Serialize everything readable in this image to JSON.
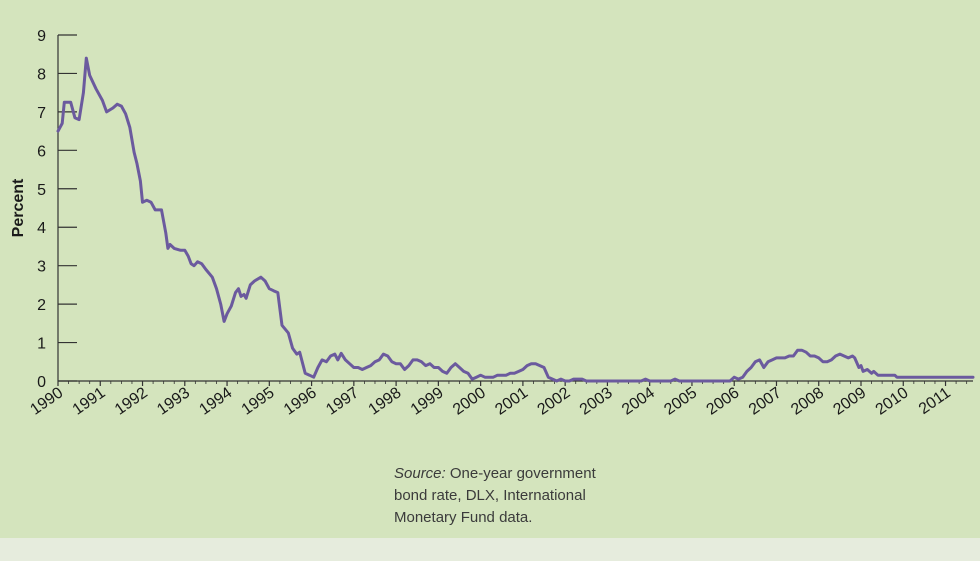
{
  "chart_data": {
    "type": "line",
    "title": "",
    "ylabel": "Percent",
    "xlabel": "",
    "ylim": [
      0,
      9
    ],
    "xlim": [
      1990,
      2011.65
    ],
    "y_ticks": [
      0,
      1,
      2,
      3,
      4,
      5,
      6,
      7,
      8,
      9
    ],
    "x_ticks": [
      1990,
      1991,
      1992,
      1993,
      1994,
      1995,
      1996,
      1997,
      1998,
      1999,
      2000,
      2001,
      2002,
      2003,
      2004,
      2005,
      2006,
      2007,
      2008,
      2009,
      2010,
      2011
    ],
    "x_tick_labels": [
      "1990",
      "1991",
      "1992",
      "1993",
      "1994",
      "1995",
      "1996",
      "1997",
      "1998",
      "1999",
      "2000",
      "2001",
      "2002",
      "2003",
      "2004",
      "2005",
      "2006",
      "2007",
      "2008",
      "2009",
      "2010",
      "2011"
    ],
    "grid": false,
    "line_color": "#6b5a9e",
    "series": [
      {
        "points": [
          [
            1990.0,
            6.5
          ],
          [
            1990.1,
            6.7
          ],
          [
            1990.15,
            7.25
          ],
          [
            1990.3,
            7.25
          ],
          [
            1990.4,
            6.85
          ],
          [
            1990.5,
            6.8
          ],
          [
            1990.6,
            7.5
          ],
          [
            1990.67,
            8.4
          ],
          [
            1990.75,
            7.95
          ],
          [
            1990.9,
            7.6
          ],
          [
            1991.05,
            7.3
          ],
          [
            1991.15,
            7.0
          ],
          [
            1991.3,
            7.1
          ],
          [
            1991.4,
            7.2
          ],
          [
            1991.5,
            7.15
          ],
          [
            1991.6,
            6.95
          ],
          [
            1991.7,
            6.6
          ],
          [
            1991.8,
            5.95
          ],
          [
            1991.87,
            5.65
          ],
          [
            1991.95,
            5.2
          ],
          [
            1992.0,
            4.65
          ],
          [
            1992.1,
            4.7
          ],
          [
            1992.2,
            4.65
          ],
          [
            1992.3,
            4.45
          ],
          [
            1992.45,
            4.45
          ],
          [
            1992.55,
            3.85
          ],
          [
            1992.6,
            3.45
          ],
          [
            1992.65,
            3.55
          ],
          [
            1992.75,
            3.45
          ],
          [
            1992.9,
            3.4
          ],
          [
            1993.0,
            3.4
          ],
          [
            1993.08,
            3.25
          ],
          [
            1993.15,
            3.05
          ],
          [
            1993.22,
            3.0
          ],
          [
            1993.3,
            3.1
          ],
          [
            1993.4,
            3.05
          ],
          [
            1993.5,
            2.9
          ],
          [
            1993.65,
            2.7
          ],
          [
            1993.75,
            2.4
          ],
          [
            1993.85,
            2.0
          ],
          [
            1993.93,
            1.55
          ],
          [
            1994.0,
            1.75
          ],
          [
            1994.1,
            1.95
          ],
          [
            1994.2,
            2.3
          ],
          [
            1994.27,
            2.4
          ],
          [
            1994.33,
            2.2
          ],
          [
            1994.4,
            2.25
          ],
          [
            1994.45,
            2.15
          ],
          [
            1994.55,
            2.5
          ],
          [
            1994.65,
            2.6
          ],
          [
            1994.8,
            2.7
          ],
          [
            1994.9,
            2.6
          ],
          [
            1995.0,
            2.4
          ],
          [
            1995.1,
            2.35
          ],
          [
            1995.2,
            2.3
          ],
          [
            1995.3,
            1.45
          ],
          [
            1995.45,
            1.25
          ],
          [
            1995.55,
            0.85
          ],
          [
            1995.65,
            0.7
          ],
          [
            1995.72,
            0.75
          ],
          [
            1995.85,
            0.2
          ],
          [
            1995.95,
            0.15
          ],
          [
            1996.05,
            0.1
          ],
          [
            1996.15,
            0.35
          ],
          [
            1996.25,
            0.55
          ],
          [
            1996.35,
            0.5
          ],
          [
            1996.45,
            0.65
          ],
          [
            1996.55,
            0.7
          ],
          [
            1996.62,
            0.55
          ],
          [
            1996.7,
            0.72
          ],
          [
            1996.8,
            0.55
          ],
          [
            1996.9,
            0.45
          ],
          [
            1997.0,
            0.35
          ],
          [
            1997.1,
            0.35
          ],
          [
            1997.2,
            0.3
          ],
          [
            1997.3,
            0.35
          ],
          [
            1997.4,
            0.4
          ],
          [
            1997.5,
            0.5
          ],
          [
            1997.6,
            0.55
          ],
          [
            1997.7,
            0.7
          ],
          [
            1997.8,
            0.65
          ],
          [
            1997.9,
            0.5
          ],
          [
            1998.0,
            0.45
          ],
          [
            1998.1,
            0.45
          ],
          [
            1998.2,
            0.3
          ],
          [
            1998.3,
            0.4
          ],
          [
            1998.4,
            0.55
          ],
          [
            1998.5,
            0.55
          ],
          [
            1998.6,
            0.5
          ],
          [
            1998.7,
            0.4
          ],
          [
            1998.8,
            0.45
          ],
          [
            1998.9,
            0.35
          ],
          [
            1999.0,
            0.35
          ],
          [
            1999.1,
            0.25
          ],
          [
            1999.2,
            0.2
          ],
          [
            1999.3,
            0.35
          ],
          [
            1999.4,
            0.45
          ],
          [
            1999.5,
            0.35
          ],
          [
            1999.6,
            0.25
          ],
          [
            1999.7,
            0.2
          ],
          [
            1999.8,
            0.05
          ],
          [
            1999.9,
            0.1
          ],
          [
            2000.0,
            0.15
          ],
          [
            2000.1,
            0.1
          ],
          [
            2000.2,
            0.1
          ],
          [
            2000.3,
            0.1
          ],
          [
            2000.4,
            0.15
          ],
          [
            2000.5,
            0.15
          ],
          [
            2000.6,
            0.15
          ],
          [
            2000.7,
            0.2
          ],
          [
            2000.8,
            0.2
          ],
          [
            2000.9,
            0.25
          ],
          [
            2001.0,
            0.3
          ],
          [
            2001.1,
            0.4
          ],
          [
            2001.2,
            0.45
          ],
          [
            2001.3,
            0.45
          ],
          [
            2001.4,
            0.4
          ],
          [
            2001.5,
            0.35
          ],
          [
            2001.6,
            0.1
          ],
          [
            2001.7,
            0.05
          ],
          [
            2001.8,
            0.0
          ],
          [
            2001.9,
            0.05
          ],
          [
            2002.0,
            0.0
          ],
          [
            2002.1,
            0.0
          ],
          [
            2002.2,
            0.05
          ],
          [
            2002.3,
            0.05
          ],
          [
            2002.4,
            0.05
          ],
          [
            2002.5,
            0.0
          ],
          [
            2003.0,
            0.0
          ],
          [
            2003.5,
            0.0
          ],
          [
            2003.8,
            0.0
          ],
          [
            2003.9,
            0.05
          ],
          [
            2004.0,
            0.0
          ],
          [
            2004.5,
            0.0
          ],
          [
            2004.6,
            0.05
          ],
          [
            2004.7,
            0.0
          ],
          [
            2005.0,
            0.0
          ],
          [
            2005.5,
            0.0
          ],
          [
            2005.9,
            0.0
          ],
          [
            2006.0,
            0.1
          ],
          [
            2006.1,
            0.05
          ],
          [
            2006.2,
            0.1
          ],
          [
            2006.3,
            0.25
          ],
          [
            2006.4,
            0.35
          ],
          [
            2006.5,
            0.5
          ],
          [
            2006.6,
            0.55
          ],
          [
            2006.7,
            0.35
          ],
          [
            2006.8,
            0.5
          ],
          [
            2006.9,
            0.55
          ],
          [
            2007.0,
            0.6
          ],
          [
            2007.1,
            0.6
          ],
          [
            2007.2,
            0.6
          ],
          [
            2007.3,
            0.65
          ],
          [
            2007.4,
            0.65
          ],
          [
            2007.5,
            0.8
          ],
          [
            2007.6,
            0.8
          ],
          [
            2007.7,
            0.75
          ],
          [
            2007.8,
            0.65
          ],
          [
            2007.9,
            0.65
          ],
          [
            2008.0,
            0.6
          ],
          [
            2008.1,
            0.5
          ],
          [
            2008.2,
            0.5
          ],
          [
            2008.3,
            0.55
          ],
          [
            2008.4,
            0.65
          ],
          [
            2008.5,
            0.7
          ],
          [
            2008.6,
            0.65
          ],
          [
            2008.7,
            0.6
          ],
          [
            2008.8,
            0.65
          ],
          [
            2008.85,
            0.6
          ],
          [
            2008.95,
            0.35
          ],
          [
            2009.0,
            0.4
          ],
          [
            2009.05,
            0.25
          ],
          [
            2009.15,
            0.3
          ],
          [
            2009.25,
            0.2
          ],
          [
            2009.3,
            0.25
          ],
          [
            2009.4,
            0.15
          ],
          [
            2009.6,
            0.15
          ],
          [
            2009.8,
            0.15
          ],
          [
            2009.85,
            0.1
          ],
          [
            2010.0,
            0.1
          ],
          [
            2010.5,
            0.1
          ],
          [
            2011.0,
            0.1
          ],
          [
            2011.5,
            0.1
          ],
          [
            2011.65,
            0.1
          ]
        ]
      }
    ]
  },
  "source_label": "Source:",
  "source_text": " One-year government bond rate, DLX, International Monetary Fund",
  "source_tail": "data."
}
